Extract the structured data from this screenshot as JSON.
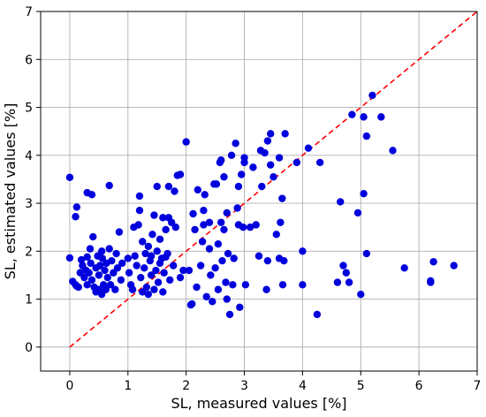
{
  "chart_data": {
    "type": "scatter",
    "xlabel": "SL, measured values [%]",
    "ylabel": "SL, estimated values [%]",
    "xlim": [
      -0.5,
      7
    ],
    "ylim": [
      -0.5,
      7
    ],
    "xticks": [
      0,
      1,
      2,
      3,
      4,
      5,
      6,
      7
    ],
    "yticks": [
      0,
      1,
      2,
      3,
      4,
      5,
      6,
      7
    ],
    "grid": true,
    "point_color": "#0000dd",
    "reference_line": {
      "from": [
        0,
        0
      ],
      "to": [
        7,
        7
      ],
      "color": "#ff0000",
      "style": "dashed"
    },
    "points": [
      [
        0.0,
        3.54
      ],
      [
        0.0,
        1.86
      ],
      [
        0.1,
        2.72
      ],
      [
        0.12,
        2.92
      ],
      [
        0.05,
        1.37
      ],
      [
        0.1,
        1.3
      ],
      [
        0.12,
        1.27
      ],
      [
        0.15,
        1.25
      ],
      [
        0.18,
        1.55
      ],
      [
        0.2,
        1.82
      ],
      [
        0.22,
        1.7
      ],
      [
        0.25,
        1.45
      ],
      [
        0.28,
        1.6
      ],
      [
        0.3,
        1.88
      ],
      [
        0.3,
        1.3
      ],
      [
        0.33,
        1.55
      ],
      [
        0.35,
        2.05
      ],
      [
        0.36,
        1.75
      ],
      [
        0.38,
        1.4
      ],
      [
        0.4,
        2.3
      ],
      [
        0.42,
        1.25
      ],
      [
        0.45,
        1.65
      ],
      [
        0.48,
        1.9
      ],
      [
        0.5,
        1.2
      ],
      [
        0.5,
        1.5
      ],
      [
        0.52,
        1.7
      ],
      [
        0.55,
        2.0
      ],
      [
        0.56,
        1.85
      ],
      [
        0.58,
        1.3
      ],
      [
        0.6,
        1.6
      ],
      [
        0.62,
        1.2
      ],
      [
        0.63,
        1.75
      ],
      [
        0.65,
        1.45
      ],
      [
        0.68,
        2.05
      ],
      [
        0.7,
        1.3
      ],
      [
        0.72,
        1.8
      ],
      [
        0.75,
        1.55
      ],
      [
        0.78,
        1.2
      ],
      [
        0.8,
        1.95
      ],
      [
        0.82,
        1.65
      ],
      [
        0.85,
        2.4
      ],
      [
        0.88,
        1.4
      ],
      [
        0.9,
        1.75
      ],
      [
        0.3,
        3.22
      ],
      [
        0.38,
        3.18
      ],
      [
        0.68,
        3.37
      ],
      [
        0.55,
        1.1
      ],
      [
        0.45,
        1.15
      ],
      [
        1.0,
        1.85
      ],
      [
        1.02,
        1.55
      ],
      [
        1.05,
        1.3
      ],
      [
        1.08,
        1.2
      ],
      [
        1.1,
        2.5
      ],
      [
        1.12,
        1.9
      ],
      [
        1.15,
        1.7
      ],
      [
        1.18,
        2.55
      ],
      [
        1.2,
        2.85
      ],
      [
        1.2,
        3.15
      ],
      [
        1.22,
        1.45
      ],
      [
        1.25,
        2.2
      ],
      [
        1.28,
        1.65
      ],
      [
        1.3,
        1.95
      ],
      [
        1.32,
        1.25
      ],
      [
        1.35,
        2.1
      ],
      [
        1.38,
        1.8
      ],
      [
        1.4,
        1.5
      ],
      [
        1.42,
        2.35
      ],
      [
        1.45,
        2.75
      ],
      [
        1.48,
        1.6
      ],
      [
        1.5,
        2.0
      ],
      [
        1.52,
        1.35
      ],
      [
        1.55,
        2.25
      ],
      [
        1.58,
        1.85
      ],
      [
        1.6,
        2.7
      ],
      [
        1.62,
        1.55
      ],
      [
        1.65,
        2.45
      ],
      [
        1.68,
        1.95
      ],
      [
        1.7,
        2.7
      ],
      [
        1.72,
        1.4
      ],
      [
        1.75,
        2.6
      ],
      [
        1.78,
        1.7
      ],
      [
        1.8,
        3.25
      ],
      [
        1.82,
        2.5
      ],
      [
        1.85,
        3.58
      ],
      [
        1.9,
        3.6
      ],
      [
        1.5,
        3.35
      ],
      [
        1.7,
        3.35
      ],
      [
        1.45,
        1.2
      ],
      [
        1.6,
        1.15
      ],
      [
        1.35,
        1.1
      ],
      [
        1.25,
        1.15
      ],
      [
        1.55,
        1.75
      ],
      [
        1.9,
        1.45
      ],
      [
        1.95,
        1.6
      ],
      [
        1.65,
        1.88
      ],
      [
        1.4,
        1.9
      ],
      [
        2.0,
        4.28
      ],
      [
        2.05,
        1.6
      ],
      [
        2.08,
        0.88
      ],
      [
        2.1,
        0.9
      ],
      [
        2.12,
        2.78
      ],
      [
        2.15,
        2.45
      ],
      [
        2.18,
        1.25
      ],
      [
        2.2,
        3.28
      ],
      [
        2.25,
        1.7
      ],
      [
        2.28,
        2.2
      ],
      [
        2.3,
        2.55
      ],
      [
        2.32,
        3.18
      ],
      [
        2.35,
        1.05
      ],
      [
        2.4,
        2.6
      ],
      [
        2.42,
        1.5
      ],
      [
        2.45,
        0.95
      ],
      [
        2.48,
        3.4
      ],
      [
        2.5,
        1.65
      ],
      [
        2.52,
        3.4
      ],
      [
        2.55,
        2.15
      ],
      [
        2.58,
        3.85
      ],
      [
        2.6,
        3.9
      ],
      [
        2.62,
        1.8
      ],
      [
        2.65,
        3.55
      ],
      [
        2.68,
        1.35
      ],
      [
        2.7,
        2.8
      ],
      [
        2.72,
        1.95
      ],
      [
        2.75,
        0.68
      ],
      [
        2.78,
        4.0
      ],
      [
        2.8,
        1.3
      ],
      [
        2.82,
        1.85
      ],
      [
        2.85,
        4.25
      ],
      [
        2.88,
        2.9
      ],
      [
        2.9,
        3.35
      ],
      [
        2.92,
        0.83
      ],
      [
        2.95,
        3.6
      ],
      [
        2.98,
        2.5
      ],
      [
        3.0,
        3.85
      ],
      [
        3.0,
        3.95
      ],
      [
        3.02,
        1.3
      ],
      [
        2.6,
        2.6
      ],
      [
        2.3,
        2.85
      ],
      [
        2.4,
        2.05
      ],
      [
        2.7,
        1.0
      ],
      [
        2.9,
        2.55
      ],
      [
        2.55,
        1.2
      ],
      [
        2.65,
        2.45
      ],
      [
        3.1,
        2.5
      ],
      [
        3.15,
        3.75
      ],
      [
        3.2,
        2.55
      ],
      [
        3.25,
        1.9
      ],
      [
        3.28,
        4.1
      ],
      [
        3.3,
        3.35
      ],
      [
        3.35,
        4.05
      ],
      [
        3.38,
        1.2
      ],
      [
        3.4,
        4.3
      ],
      [
        3.45,
        4.45
      ],
      [
        3.5,
        3.55
      ],
      [
        3.55,
        2.35
      ],
      [
        3.6,
        3.95
      ],
      [
        3.62,
        2.6
      ],
      [
        3.65,
        3.1
      ],
      [
        3.66,
        1.3
      ],
      [
        3.68,
        1.8
      ],
      [
        3.7,
        4.45
      ],
      [
        3.4,
        1.8
      ],
      [
        3.45,
        3.8
      ],
      [
        3.6,
        1.85
      ],
      [
        3.9,
        3.85
      ],
      [
        4.0,
        2.0
      ],
      [
        4.1,
        4.15
      ],
      [
        4.0,
        1.3
      ],
      [
        4.25,
        0.68
      ],
      [
        4.3,
        3.85
      ],
      [
        4.6,
        1.35
      ],
      [
        4.65,
        3.03
      ],
      [
        4.7,
        1.7
      ],
      [
        4.75,
        1.55
      ],
      [
        4.8,
        1.35
      ],
      [
        4.85,
        4.85
      ],
      [
        4.95,
        2.8
      ],
      [
        5.0,
        1.1
      ],
      [
        5.05,
        3.2
      ],
      [
        5.05,
        4.8
      ],
      [
        5.1,
        1.95
      ],
      [
        5.1,
        4.4
      ],
      [
        5.2,
        5.25
      ],
      [
        5.35,
        4.8
      ],
      [
        5.55,
        4.1
      ],
      [
        5.75,
        1.65
      ],
      [
        6.2,
        1.35
      ],
      [
        6.2,
        1.38
      ],
      [
        6.25,
        1.78
      ],
      [
        6.6,
        1.7
      ]
    ]
  }
}
